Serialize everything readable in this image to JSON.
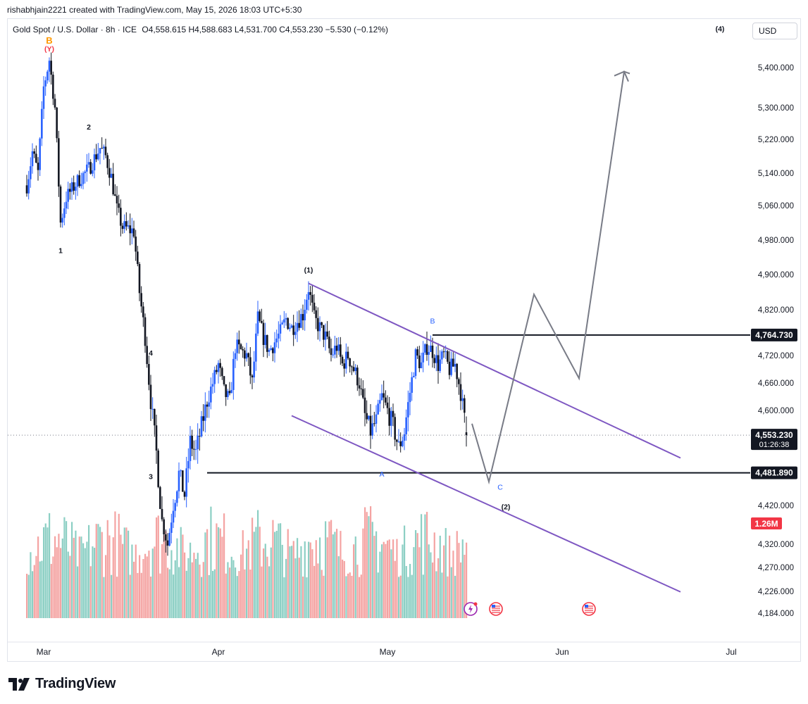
{
  "author_line": "rishabhjain2221 created with TradingView.com, May 15, 2026 18:03 UTC+5:30",
  "legend": {
    "symbol": "Gold Spot / U.S. Dollar · 8h · ICE",
    "ohlc": "O4,558.615  H4,588.683  L4,531.700  C4,553.230  −5.530 (−0.12%)"
  },
  "currency_button": "USD",
  "footer_brand": "TradingView",
  "colors": {
    "up": "#2962ff",
    "down": "#131722",
    "volume_up": "#8ccfc4",
    "volume_down": "#f4a3a2",
    "channel": "#7e57c2",
    "projection": "#787b86",
    "wave_blue": "#2962ff",
    "wave_red": "#f23645",
    "wave_orange": "#ff9800"
  },
  "chart_data": {
    "type": "candlestick",
    "timeframe": "8h",
    "y_ticks": [
      5400,
      5300,
      5220,
      5140,
      5060,
      4980,
      4900,
      4820,
      4720,
      4660,
      4600,
      4420,
      4320,
      4270,
      4226,
      4184
    ],
    "x_ticks": [
      "Mar",
      "Apr",
      "May",
      "Jun",
      "Jul"
    ],
    "current_price": {
      "value": "4,553.230",
      "countdown": "01:26:38"
    },
    "price_labels": [
      "4,764.730",
      "4,481.890"
    ],
    "volume_label": "1.26M",
    "horizontal_lines": [
      4764.73,
      4481.89
    ],
    "price_path": [
      [
        "Feb 26",
        5110
      ],
      [
        "Feb 27",
        5190
      ],
      [
        "Feb 28",
        5140
      ],
      [
        "Mar 1",
        5350
      ],
      [
        "Mar 2",
        5420
      ],
      [
        "Mar 3",
        5300
      ],
      [
        "Mar 4",
        5020
      ],
      [
        "Mar 5",
        5080
      ],
      [
        "Mar 7",
        5120
      ],
      [
        "Mar 9",
        5150
      ],
      [
        "Mar 11",
        5200
      ],
      [
        "Mar 12",
        5180
      ],
      [
        "Mar 13",
        5130
      ],
      [
        "Mar 14",
        5050
      ],
      [
        "Mar 15",
        5010
      ],
      [
        "Mar 17",
        5000
      ],
      [
        "Mar 18",
        4860
      ],
      [
        "Mar 19",
        4760
      ],
      [
        "Mar 20",
        4620
      ],
      [
        "Mar 21",
        4520
      ],
      [
        "Mar 22",
        4380
      ],
      [
        "Mar 23",
        4320
      ],
      [
        "Mar 24",
        4420
      ],
      [
        "Mar 25",
        4480
      ],
      [
        "Mar 26",
        4440
      ],
      [
        "Mar 27",
        4540
      ],
      [
        "Mar 28",
        4520
      ],
      [
        "Mar 30",
        4620
      ],
      [
        "Mar 31",
        4660
      ],
      [
        "Apr 1",
        4700
      ],
      [
        "Apr 2",
        4640
      ],
      [
        "Apr 3",
        4620
      ],
      [
        "Apr 4",
        4740
      ],
      [
        "Apr 6",
        4720
      ],
      [
        "Apr 7",
        4660
      ],
      [
        "Apr 8",
        4800
      ],
      [
        "Apr 9",
        4760
      ],
      [
        "Apr 10",
        4730
      ],
      [
        "Apr 12",
        4770
      ],
      [
        "Apr 13",
        4800
      ],
      [
        "Apr 14",
        4780
      ],
      [
        "Apr 16",
        4810
      ],
      [
        "Apr 17",
        4870
      ],
      [
        "Apr 18",
        4800
      ],
      [
        "Apr 19",
        4780
      ],
      [
        "Apr 20",
        4760
      ],
      [
        "Apr 21",
        4720
      ],
      [
        "Apr 22",
        4740
      ],
      [
        "Apr 23",
        4700
      ],
      [
        "Apr 24",
        4720
      ],
      [
        "Apr 25",
        4690
      ],
      [
        "Apr 26",
        4660
      ],
      [
        "Apr 27",
        4590
      ],
      [
        "Apr 28",
        4560
      ],
      [
        "Apr 29",
        4580
      ],
      [
        "Apr 30",
        4630
      ],
      [
        "May 1",
        4600
      ],
      [
        "May 2",
        4570
      ],
      [
        "May 3",
        4530
      ],
      [
        "May 4",
        4560
      ],
      [
        "May 5",
        4640
      ],
      [
        "May 6",
        4720
      ],
      [
        "May 7",
        4700
      ],
      [
        "May 8",
        4740
      ],
      [
        "May 9",
        4730
      ],
      [
        "May 10",
        4700
      ],
      [
        "May 11",
        4720
      ],
      [
        "May 12",
        4690
      ],
      [
        "May 13",
        4700
      ],
      [
        "May 14",
        4640
      ],
      [
        "May 15",
        4553
      ]
    ],
    "volume": {
      "min_fraction": 0.35,
      "max_fraction": 1.0
    },
    "annotations": [
      {
        "text": "(Y)",
        "date": "Mar 2",
        "price": 5440,
        "color": "red"
      },
      {
        "text": "B",
        "date": "Mar 2",
        "price": 5460,
        "color": "orange"
      },
      {
        "text": "2",
        "date": "Mar 9",
        "price": 5245,
        "color": "black"
      },
      {
        "text": "1",
        "date": "Mar 4",
        "price": 4950,
        "color": "black"
      },
      {
        "text": "4",
        "date": "Mar 20",
        "price": 4720,
        "color": "black"
      },
      {
        "text": "3",
        "date": "Mar 20",
        "price": 4470,
        "color": "black"
      },
      {
        "text": "(1)",
        "date": "Apr 17",
        "price": 4905,
        "color": "black"
      },
      {
        "text": "B",
        "date": "May 9",
        "price": 4790,
        "color": "blue"
      },
      {
        "text": "A",
        "date": "Apr 30",
        "price": 4475,
        "color": "blue"
      },
      {
        "text": "C",
        "date": "May 21",
        "price": 4450,
        "color": "blue"
      },
      {
        "text": "(2)",
        "date": "May 22",
        "price": 4410,
        "color": "black"
      },
      {
        "text": "(4)",
        "date": "Jun 29",
        "price": 5490,
        "color": "black"
      }
    ],
    "channel_upper": [
      [
        "Apr 17",
        4880
      ],
      [
        "Jun 22",
        4510
      ]
    ],
    "channel_lower": [
      [
        "Apr 14",
        4590
      ],
      [
        "Jun 22",
        4225
      ]
    ],
    "projection": [
      [
        "May 16",
        4575
      ],
      [
        "May 19",
        4465
      ],
      [
        "May 27",
        4855
      ],
      [
        "Jun 4",
        4670
      ],
      [
        "Jun 12",
        5390
      ],
      [
        "Jun 13",
        5385
      ]
    ],
    "event_icons": [
      "lightning-icon",
      "us-flag-icon",
      "us-flag-icon"
    ]
  }
}
